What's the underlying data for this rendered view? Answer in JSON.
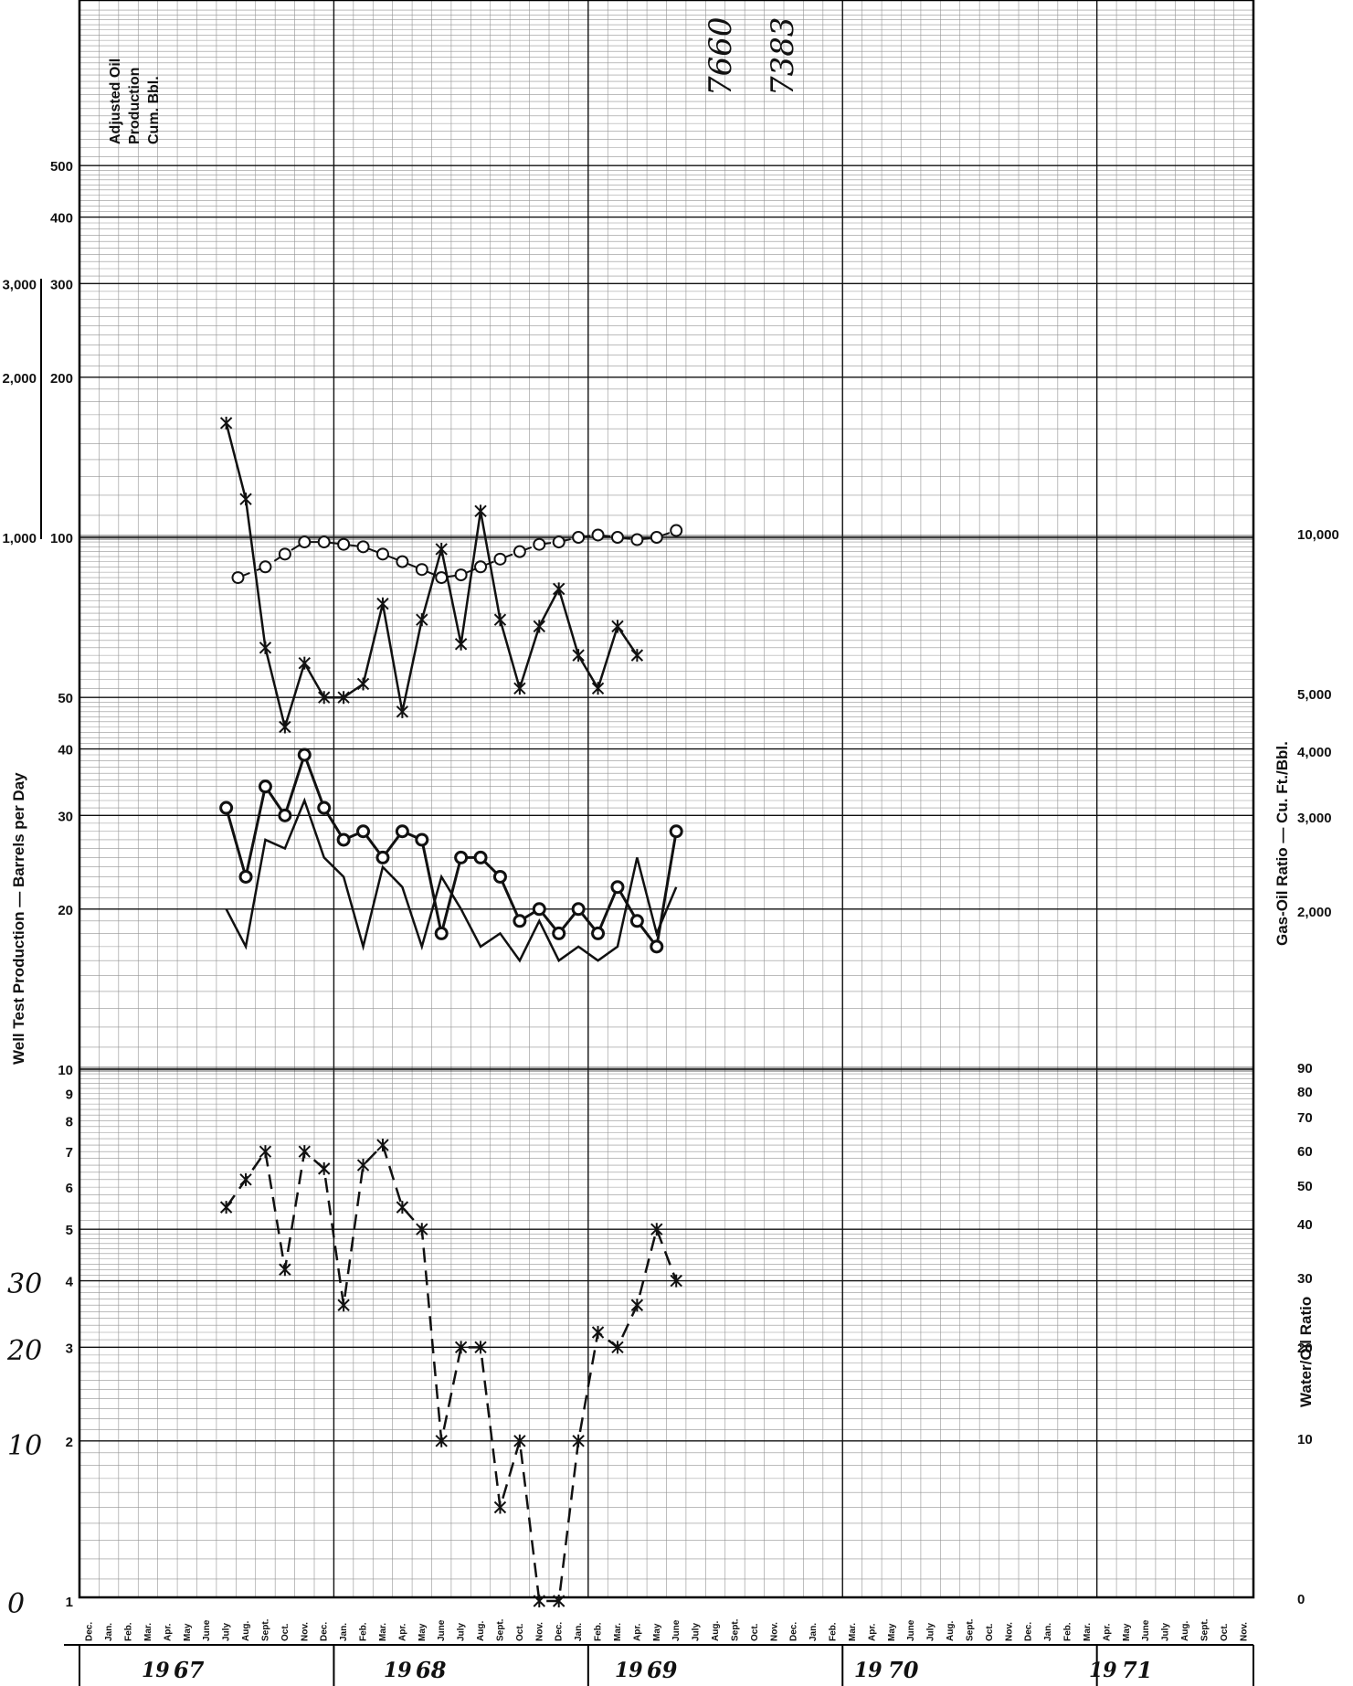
{
  "chart_data": {
    "type": "line",
    "ylabel": "Well Test Production — Barrels per Day",
    "y2label_gas": "Gas-Oil Ratio — Cu. Ft./Bbl.",
    "y2label_water": "Water/Oil Ratio",
    "top_left_label": [
      "Adjusted Oil",
      "Production",
      "Cum. Bbl."
    ],
    "handwritten_top": [
      "7660",
      "7383"
    ],
    "handwritten_left": [
      "30",
      "20",
      "10",
      "0"
    ],
    "left_ticks_upper": [
      "500",
      "400",
      "300",
      "200",
      "100",
      "50",
      "40",
      "30",
      "20",
      "10",
      "9",
      "8",
      "7",
      "6",
      "5",
      "4",
      "3",
      "2",
      "1"
    ],
    "left_ticks_outer": [
      "3,000",
      "2,000",
      "1,000"
    ],
    "right_ticks_gas": [
      "10,000",
      "5,000",
      "4,000",
      "3,000",
      "2,000"
    ],
    "right_ticks_water": [
      "90",
      "80",
      "70",
      "60",
      "50",
      "40",
      "30",
      "20",
      "10",
      "0"
    ],
    "months": [
      "Dec.",
      "Jan.",
      "Feb.",
      "Mar.",
      "Apr.",
      "May",
      "June",
      "July",
      "Aug.",
      "Sept.",
      "Oct.",
      "Nov."
    ],
    "years": [
      "19 67",
      "19 68",
      "19 69",
      "19 70",
      "19 71"
    ],
    "year_prefix": "19",
    "year_suffix": [
      "67",
      "68",
      "69",
      "70",
      "71"
    ],
    "series": [
      {
        "style": "open-circle-dashed",
        "x": [
          7.6,
          9,
          10,
          11,
          12,
          13,
          14,
          15,
          16,
          17,
          18,
          19,
          20,
          21,
          22,
          23,
          24,
          25,
          26,
          27,
          28,
          29,
          30
        ],
        "values": [
          84,
          88,
          93,
          98,
          98,
          97,
          96,
          93,
          90,
          87,
          84,
          85,
          88,
          91,
          94,
          97,
          98,
          100,
          101,
          100,
          99,
          100,
          103
        ]
      },
      {
        "style": "x-dashed-gor",
        "x": [
          7,
          8,
          9,
          10,
          11,
          12,
          13,
          14,
          15,
          16,
          17,
          18,
          19,
          20,
          21,
          22,
          23,
          24,
          25,
          26,
          27,
          28
        ],
        "values": [
          164,
          118,
          62,
          44,
          58,
          50,
          50,
          53,
          75,
          47,
          70,
          95,
          63,
          112,
          70,
          52,
          68,
          80,
          60,
          52,
          68,
          60
        ]
      },
      {
        "style": "dot-solid-oil",
        "x": [
          7,
          8,
          9,
          10,
          11,
          12,
          13,
          14,
          15,
          16,
          17,
          18,
          19,
          20,
          21,
          22,
          23,
          24,
          25,
          26,
          27,
          28,
          29,
          30
        ],
        "values": [
          31,
          23,
          34,
          30,
          39,
          31,
          27,
          28,
          25,
          28,
          27,
          18,
          25,
          25,
          23,
          19,
          20,
          18,
          20,
          18,
          22,
          19,
          17,
          28
        ]
      },
      {
        "style": "solid-lower-oil",
        "x": [
          7,
          8,
          9,
          10,
          11,
          12,
          13,
          14,
          15,
          16,
          17,
          18,
          19,
          20,
          21,
          22,
          23,
          24,
          25,
          26,
          27,
          28,
          29,
          30
        ],
        "values": [
          20,
          17,
          27,
          26,
          32,
          25,
          23,
          17,
          24,
          22,
          17,
          23,
          20,
          17,
          18,
          16,
          19,
          16,
          17,
          16,
          17,
          25,
          18,
          22
        ]
      },
      {
        "style": "x-dashed-water",
        "x": [
          7,
          8,
          9,
          10,
          11,
          12,
          13,
          14,
          15,
          16,
          17,
          18,
          19,
          20,
          21,
          22,
          23,
          24,
          25,
          26,
          27,
          28,
          29,
          30
        ],
        "values": [
          5.5,
          6.2,
          7,
          4.2,
          7,
          6.5,
          3.6,
          6.6,
          7.2,
          5.5,
          5,
          2,
          3,
          3,
          1.5,
          2,
          0,
          1,
          2,
          3.2,
          3,
          3.6,
          5,
          4
        ]
      }
    ]
  }
}
